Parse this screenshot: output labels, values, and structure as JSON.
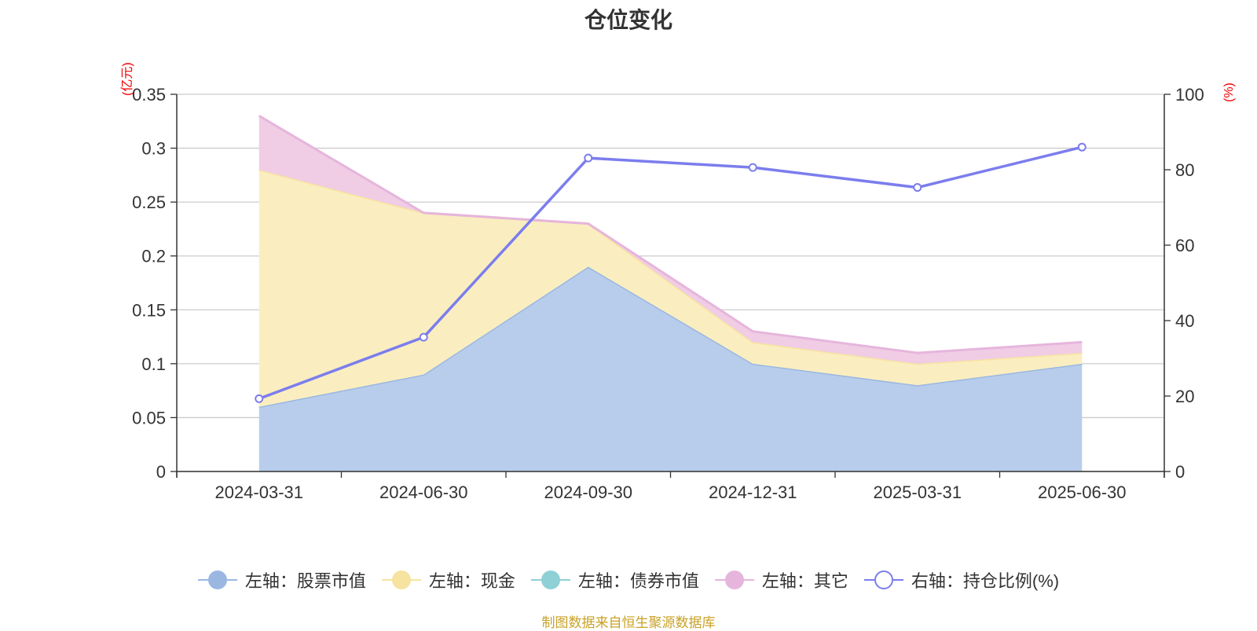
{
  "chart_data": {
    "type": "area",
    "title": "仓位变化",
    "left_unit": "(亿元)",
    "right_unit": "(%)",
    "categories": [
      "2024-03-31",
      "2024-06-30",
      "2024-09-30",
      "2024-12-31",
      "2025-03-31",
      "2025-06-30"
    ],
    "ylim_left": [
      0,
      0.35
    ],
    "yticks_left": [
      "0",
      "0.05",
      "0.1",
      "0.15",
      "0.2",
      "0.25",
      "0.3",
      "0.35"
    ],
    "ylim_right": [
      0,
      100
    ],
    "yticks_right": [
      "0",
      "20",
      "40",
      "60",
      "80",
      "100"
    ],
    "grid": true,
    "legend_position": "bottom",
    "series": [
      {
        "name": "左轴：股票市值",
        "axis": "left",
        "stacked": true,
        "values": [
          0.06,
          0.09,
          0.19,
          0.1,
          0.08,
          0.1
        ],
        "color": "#9ab7e2",
        "fill": "#b8cdeb"
      },
      {
        "name": "左轴：现金",
        "axis": "left",
        "stacked": true,
        "values": [
          0.22,
          0.15,
          0.04,
          0.02,
          0.02,
          0.01
        ],
        "color": "#f7e3a0",
        "fill": "#faeec0"
      },
      {
        "name": "左轴：债券市值",
        "axis": "left",
        "stacked": true,
        "values": [
          0,
          0,
          0,
          0,
          0,
          0
        ],
        "color": "#8fd0d6",
        "fill": "#8fd0d6"
      },
      {
        "name": "左轴：其它",
        "axis": "left",
        "stacked": true,
        "values": [
          0.05,
          0.0,
          0.0,
          0.01,
          0.01,
          0.01
        ],
        "color": "#e6b5dc",
        "fill": "#f0cde5"
      },
      {
        "name": "右轴：持仓比例(%)",
        "axis": "right",
        "type": "line",
        "values": [
          19.3,
          35.6,
          83.1,
          80.6,
          75.3,
          86.0
        ],
        "color": "#7b7ded"
      }
    ]
  },
  "source_note": "制图数据来自恒生聚源数据库"
}
